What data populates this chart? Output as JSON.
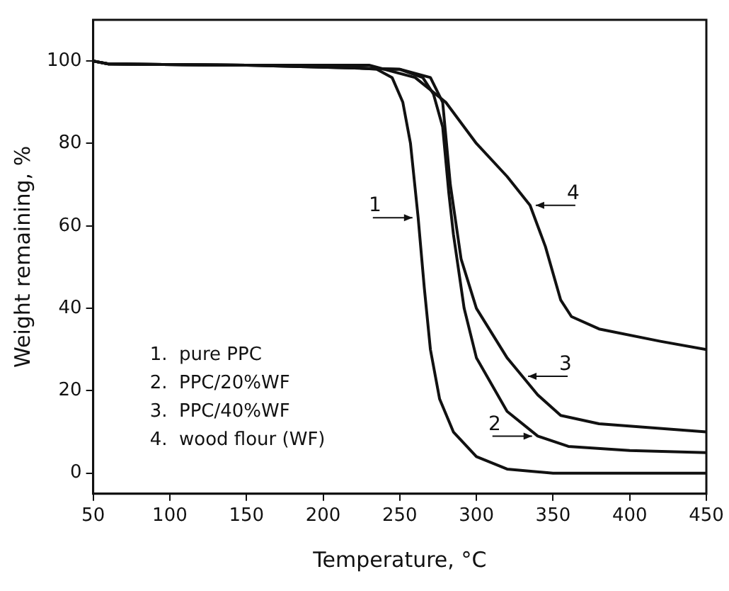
{
  "chart_data": {
    "type": "line",
    "xlabel": "Temperature, °C",
    "ylabel": "Weight remaining, %",
    "xlim": [
      50,
      450
    ],
    "xticks": [
      50,
      100,
      150,
      200,
      250,
      300,
      350,
      400,
      450
    ],
    "ylim": [
      -5,
      110
    ],
    "yticks": [
      0,
      20,
      40,
      60,
      80,
      100
    ],
    "grid": false,
    "legend": false,
    "marker": "none",
    "line_style": "solid",
    "series": [
      {
        "color": "#111111",
        "x": [
          50,
          60,
          150,
          200,
          235,
          245,
          252,
          257,
          262,
          266,
          270,
          276,
          285,
          300,
          320,
          350,
          450
        ],
        "values": [
          100,
          99.3,
          99,
          99,
          98,
          96,
          90,
          80,
          62,
          45,
          30,
          18,
          10,
          4,
          1,
          0,
          0
        ]
      },
      {
        "color": "#111111",
        "x": [
          50,
          60,
          150,
          250,
          265,
          272,
          278,
          282,
          285,
          292,
          300,
          320,
          340,
          360,
          400,
          450
        ],
        "values": [
          100,
          99.3,
          99,
          98,
          96,
          92,
          84,
          68,
          58,
          40,
          28,
          15,
          9,
          6.5,
          5.5,
          5
        ]
      },
      {
        "color": "#111111",
        "x": [
          50,
          60,
          150,
          250,
          270,
          278,
          283,
          290,
          300,
          320,
          330,
          340,
          355,
          380,
          450
        ],
        "values": [
          100,
          99.3,
          99,
          98,
          96,
          90,
          70,
          52,
          40,
          28,
          23.5,
          19,
          14,
          12,
          10
        ]
      },
      {
        "color": "#111111",
        "x": [
          50,
          60,
          150,
          230,
          260,
          280,
          300,
          320,
          335,
          345,
          355,
          362,
          380,
          420,
          450
        ],
        "values": [
          100,
          99.3,
          99,
          99,
          96,
          90,
          80,
          72,
          65,
          55,
          42,
          38,
          35,
          32,
          30
        ]
      }
    ],
    "annotations": [
      {
        "text": "1",
        "x": 262,
        "y": 62
      },
      {
        "text": "2",
        "x": 340,
        "y": 9
      },
      {
        "text": "3",
        "x": 330,
        "y": 23.5
      },
      {
        "text": "4",
        "x": 335,
        "y": 65
      },
      "1.  pure PPC",
      "2.  PPC/20%WF",
      "3.  PPC/40%WF",
      "4.  wood flour (WF)"
    ]
  }
}
